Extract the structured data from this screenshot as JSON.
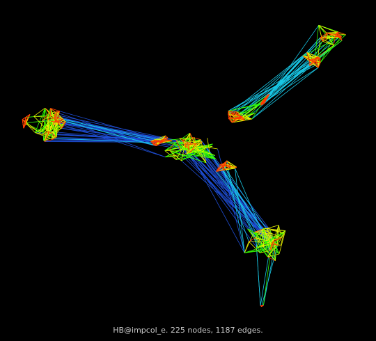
{
  "caption": "HB@impcol_e. 225 nodes, 1187 edges.",
  "graph": {
    "nodes": 225,
    "edges": 1187
  },
  "colors": {
    "background": "#000000",
    "edge_long": "#1f4fd8",
    "edge_mid": "#19c8e6",
    "edge_short": "#32ff00",
    "edge_shorter": "#e6f000",
    "edge_shortest": "#ff3c00",
    "caption": "#c8c8c8"
  }
}
